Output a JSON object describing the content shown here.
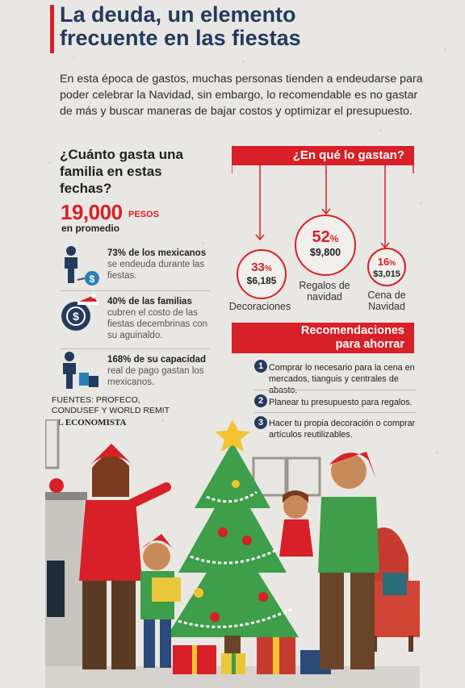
{
  "header": {
    "title_line1": "La deuda, un elemento",
    "title_line2": "frecuente en las fiestas",
    "intro": "En esta época de gastos, muchas personas tienden a endeudarse para poder celebrar la Navidad, sin embargo, lo recomendable es no gastar de más y buscar maneras de bajar costos y optimizar el presupuesto."
  },
  "spend": {
    "question": "¿Cuánto gasta una familia en estas fechas?",
    "amount": "19,000",
    "unit": "PESOS",
    "note": "en promedio"
  },
  "stats": [
    {
      "bold": "73% de los mexicanos",
      "text": "se endeuda durante las fiestas.",
      "icon": "person-debt-icon"
    },
    {
      "bold": "40% de las familias",
      "text": "cubren el costo de las fiestas decembrinas con su aguinaldo.",
      "icon": "money-bag-icon"
    },
    {
      "bold": "168% de su capacidad",
      "text": "real de pago gastan los mexicanos.",
      "icon": "person-shopping-icon"
    }
  ],
  "sources": {
    "line1": "FUENTES: PROFECO,",
    "line2": "CONDUSEF Y WORLD REMIT",
    "publisher": "EL ECONOMISTA"
  },
  "where": {
    "heading": "¿En qué lo gastan?",
    "items": [
      {
        "pct": "33",
        "amount": "$6,185",
        "label": "Decoraciones"
      },
      {
        "pct": "52",
        "amount": "$9,800",
        "label": "Regalos de navidad"
      },
      {
        "pct": "16",
        "amount": "$3,015",
        "label": "Cena de Navidad"
      }
    ],
    "pct_sign": "%"
  },
  "recs": {
    "heading_line1": "Recomendaciones",
    "heading_line2": "para ahorrar",
    "items": [
      {
        "n": "1",
        "text": "Comprar lo necesario para la cena en mercados, tianguis y centrales de abasto."
      },
      {
        "n": "2",
        "text": "Planear tu presupuesto para regalos."
      },
      {
        "n": "3",
        "text": "Hacer tu propia decoración o comprar artículos reutilizables."
      }
    ]
  },
  "colors": {
    "red": "#d72027",
    "navy": "#243a5e",
    "tree": "#3e9e4a"
  }
}
